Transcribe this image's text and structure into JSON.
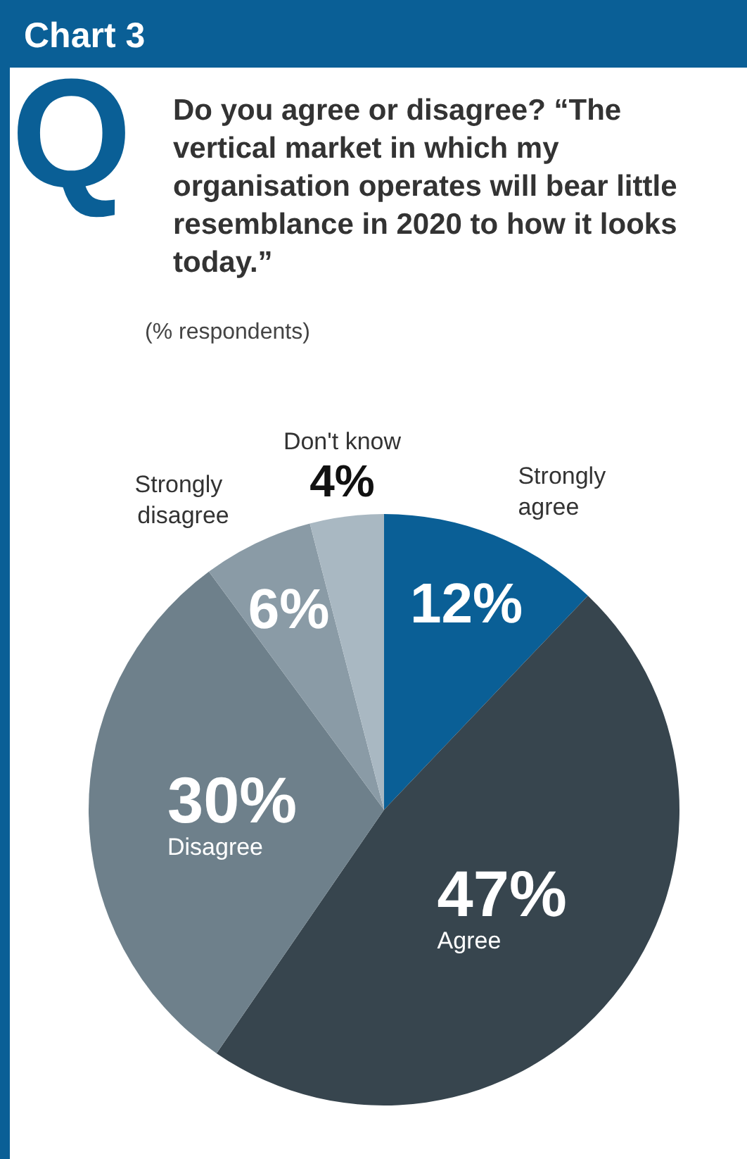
{
  "chart_data": {
    "type": "pie",
    "title": "Chart 3",
    "subtitle": "Do you agree or disagree? “The vertical market in which my organisation operates will bear little resemblance in 2020 to how it looks today.”",
    "annotations": [
      "Q",
      "(% respondents)"
    ],
    "categories": [
      "Strongly agree",
      "Agree",
      "Disagree",
      "Strongly disagree",
      "Don't know"
    ],
    "values": [
      12,
      47,
      30,
      6,
      4
    ],
    "colors": [
      "#0a5f96",
      "#37454e",
      "#6e808b",
      "#8a9ba6",
      "#a9b8c2"
    ],
    "value_labels": [
      "12%",
      "47%",
      "30%",
      "6%",
      "4%"
    ],
    "legend": false
  }
}
